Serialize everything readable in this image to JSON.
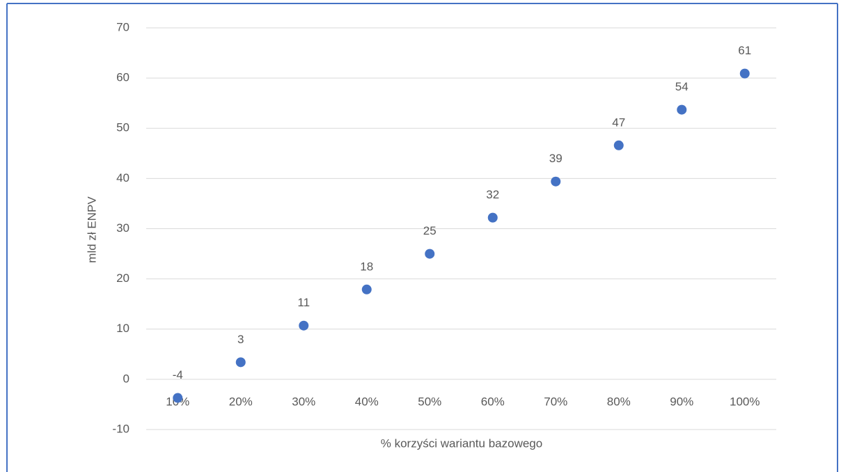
{
  "chart_data": {
    "type": "scatter",
    "y_label": "mld zł ENPV",
    "x_label": "% korzyści wariantu bazowego",
    "categories": [
      "10%",
      "20%",
      "30%",
      "40%",
      "50%",
      "60%",
      "70%",
      "80%",
      "90%",
      "100%"
    ],
    "values": [
      -3.7,
      3.4,
      10.7,
      17.9,
      25.0,
      32.2,
      39.4,
      46.6,
      53.7,
      60.9
    ],
    "value_labels": [
      "-4",
      "3",
      "11",
      "18",
      "25",
      "32",
      "39",
      "47",
      "54",
      "61"
    ],
    "color": "#4472c4",
    "ylim": [
      -10,
      70
    ],
    "yticks": [
      -10,
      0,
      10,
      20,
      30,
      40,
      50,
      60,
      70
    ],
    "grid": true
  }
}
